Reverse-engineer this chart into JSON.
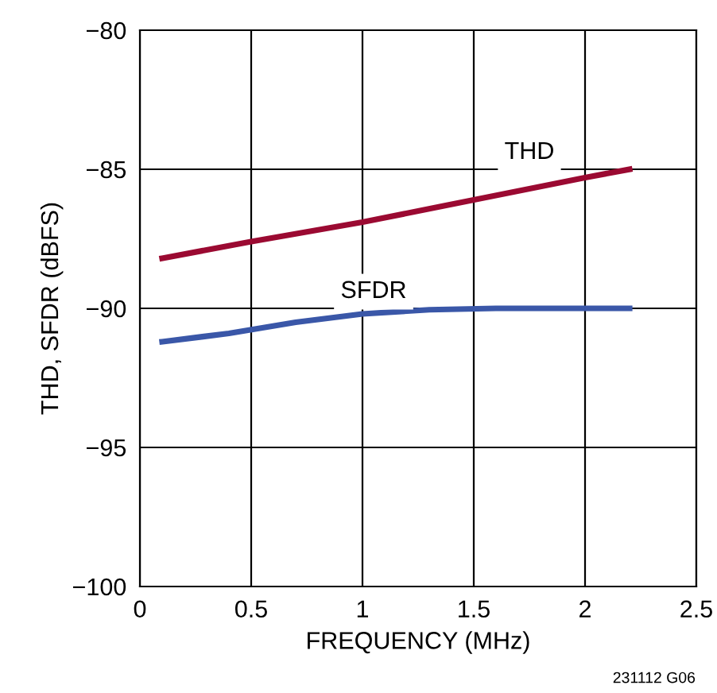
{
  "chart_data": {
    "type": "line",
    "xlabel": "FREQUENCY (MHz)",
    "ylabel": "THD, SFDR (dBFS)",
    "series": [
      {
        "name": "THD",
        "color": "#9b0a32",
        "x": [
          0.1,
          0.5,
          1.0,
          1.5,
          2.0,
          2.2
        ],
        "values": [
          -88.2,
          -87.6,
          -86.9,
          -86.1,
          -85.3,
          -85.0
        ]
      },
      {
        "name": "SFDR",
        "color": "#3a57a8",
        "x": [
          0.1,
          0.4,
          0.7,
          1.0,
          1.3,
          1.6,
          2.2
        ],
        "values": [
          -91.2,
          -90.9,
          -90.5,
          -90.2,
          -90.05,
          -90.0,
          -90.0
        ]
      }
    ],
    "xlim": [
      0,
      2.5
    ],
    "ylim": [
      -100,
      -80
    ],
    "xticks": [
      0,
      0.5,
      1,
      1.5,
      2,
      2.5
    ],
    "yticks": [
      {
        "value": -100,
        "label": "−100"
      },
      {
        "value": -95,
        "label": "−95"
      },
      {
        "value": -90,
        "label": "−90"
      },
      {
        "value": -85,
        "label": "−85"
      },
      {
        "value": -80,
        "label": "−80"
      }
    ],
    "grid": true,
    "marker": "none",
    "line_style": "solid",
    "annotations": [
      "231112 G06"
    ]
  }
}
